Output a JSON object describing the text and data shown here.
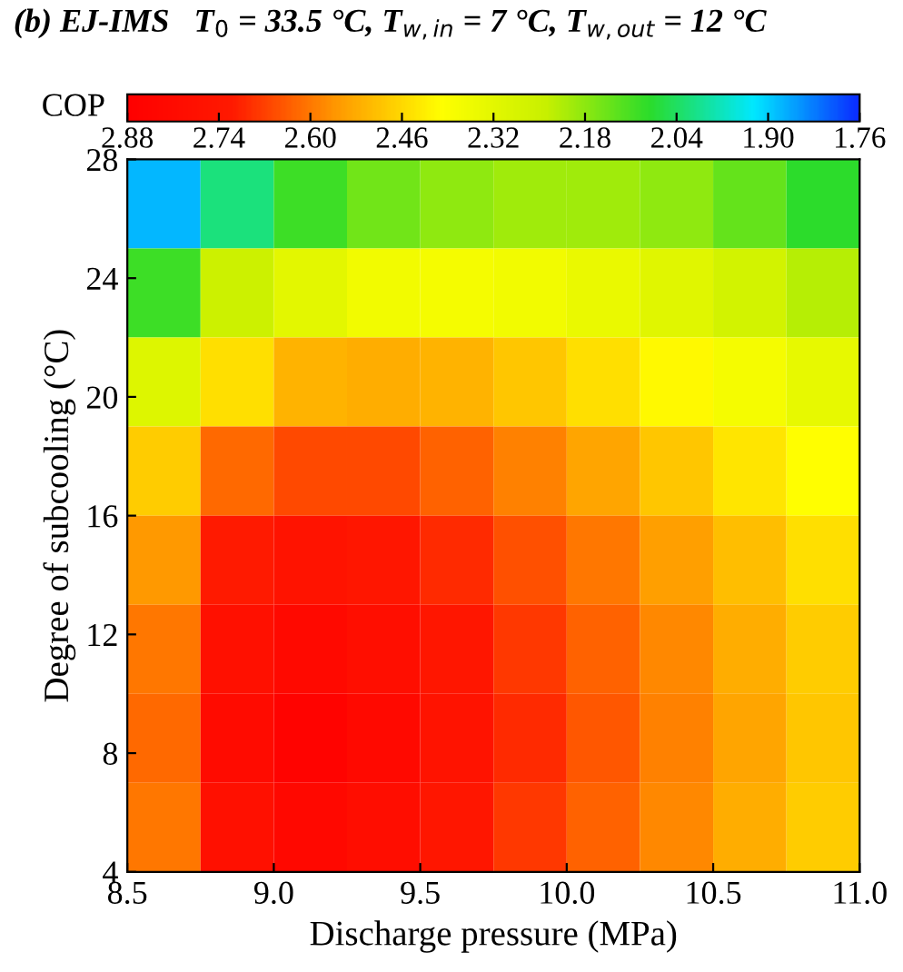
{
  "chart_data": {
    "type": "heatmap",
    "title": "(b) EJ-IMS   T$_{0}$ = 33.5 °C, T$_{w,in}$ = 7 °C, T$_{w,out}$ = 12 °C",
    "xlabel": "Discharge pressure (MPa)",
    "ylabel": "Degree of subcooling (°C)",
    "clabel": "COP",
    "xlim": [
      8.5,
      11.0
    ],
    "xticks": [
      {
        "value": 8.5,
        "label": "8.5"
      },
      {
        "value": 9.0,
        "label": "9.0"
      },
      {
        "value": 9.5,
        "label": "9.5"
      },
      {
        "value": 10.0,
        "label": "10.0"
      },
      {
        "value": 10.5,
        "label": "10.5"
      },
      {
        "value": 11.0,
        "label": "11.0"
      }
    ],
    "ylim": [
      4,
      28
    ],
    "yticks": [
      4,
      8,
      12,
      16,
      20,
      24,
      28
    ],
    "clim": [
      2.88,
      1.76
    ],
    "cticks": [
      2.88,
      2.74,
      {
        "value": 2.6,
        "label": "2.60"
      },
      2.46,
      2.32,
      2.18,
      2.04,
      {
        "value": 1.9,
        "label": "1.90"
      },
      1.76
    ],
    "cells": [
      [
        1.88,
        2.02,
        2.1,
        2.15,
        2.18,
        2.2,
        2.2,
        2.18,
        2.14,
        2.08
      ],
      [
        2.1,
        2.25,
        2.32,
        2.36,
        2.37,
        2.36,
        2.34,
        2.31,
        2.27,
        2.22
      ],
      [
        2.3,
        2.45,
        2.52,
        2.53,
        2.52,
        2.49,
        2.45,
        2.41,
        2.37,
        2.33
      ],
      [
        2.48,
        2.62,
        2.66,
        2.66,
        2.63,
        2.59,
        2.54,
        2.49,
        2.44,
        2.4
      ],
      [
        2.56,
        2.72,
        2.76,
        2.74,
        2.7,
        2.65,
        2.6,
        2.55,
        2.5,
        2.45
      ],
      [
        2.6,
        2.78,
        2.82,
        2.79,
        2.74,
        2.68,
        2.63,
        2.58,
        2.53,
        2.48
      ],
      [
        2.62,
        2.81,
        2.86,
        2.82,
        2.76,
        2.7,
        2.64,
        2.59,
        2.54,
        2.49
      ],
      [
        2.6,
        2.78,
        2.83,
        2.8,
        2.74,
        2.68,
        2.63,
        2.58,
        2.53,
        2.48
      ]
    ]
  }
}
